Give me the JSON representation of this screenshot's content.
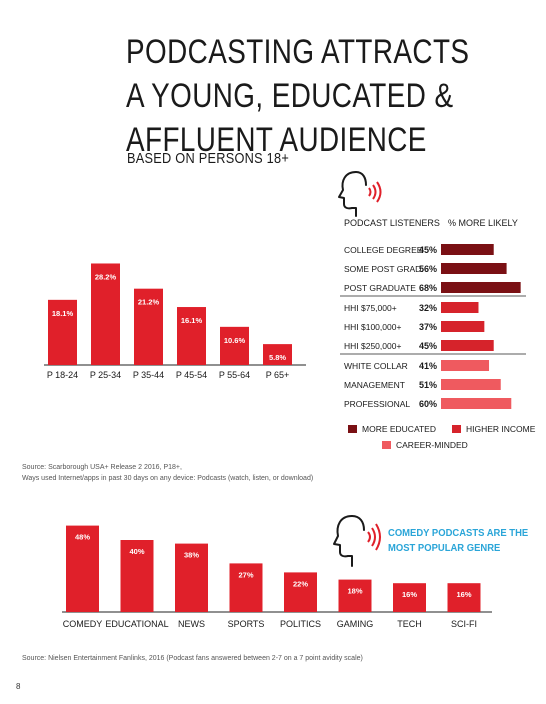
{
  "page": {
    "headline_lines": [
      "PODCASTING ATTRACTS",
      "A YOUNG, EDUCATED &",
      "AFFLUENT AUDIENCE"
    ],
    "subtitle": "BASED ON PERSONS 18+",
    "page_number": "8",
    "source_1": [
      "Source: Scarborough USA+ Release 2 2016, P18+,",
      "Ways used Internet/apps in past 30 days on any device: Podcasts (watch, listen, or download)"
    ],
    "source_2": "Source: Nielsen Entertainment Fanlinks, 2016 (Podcast fans answered between 2-7 on a 7 point avidity scale)",
    "callout": "COMEDY PODCASTS ARE THE MOST POPULAR GENRE",
    "icons": [
      "speaking-head-icon",
      "speaking-head-icon"
    ],
    "colors": {
      "bar_red": "#e0202a",
      "dark_red": "#7a1014",
      "mid_red": "#d6232b",
      "light_red": "#ef5a5f",
      "accent_blue": "#2aa5d8"
    }
  },
  "chart_data": [
    {
      "type": "bar",
      "categories": [
        "P 18-24",
        "P 25-34",
        "P 35-44",
        "P 45-54",
        "P 55-64",
        "P 65+"
      ],
      "values": [
        18.1,
        28.2,
        21.2,
        16.1,
        10.6,
        5.8
      ],
      "data_labels": [
        "18.1%",
        "28.2%",
        "21.2%",
        "16.1%",
        "10.6%",
        "5.8%"
      ],
      "ylim": [
        0,
        30
      ],
      "grid": false,
      "color": "#e0202a"
    },
    {
      "type": "bar",
      "orientation": "horizontal",
      "header_left": "PODCAST LISTENERS",
      "header_right": "% MORE LIKELY",
      "groups": [
        {
          "name": "MORE EDUCATED",
          "color": "#7a1014",
          "categories": [
            "COLLEGE DEGREE",
            "SOME POST GRAD.",
            "POST GRADUATE"
          ],
          "values": [
            45,
            56,
            68
          ],
          "data_labels": [
            "45%",
            "56%",
            "68%"
          ]
        },
        {
          "name": "HIGHER INCOME",
          "color": "#d6232b",
          "categories": [
            "HHI $75,000+",
            "HHI $100,000+",
            "HHI $250,000+"
          ],
          "values": [
            32,
            37,
            45
          ],
          "data_labels": [
            "32%",
            "37%",
            "45%"
          ]
        },
        {
          "name": "CAREER-MINDED",
          "color": "#ef5a5f",
          "categories": [
            "WHITE COLLAR",
            "MANAGEMENT",
            "PROFESSIONAL"
          ],
          "values": [
            41,
            51,
            60
          ],
          "data_labels": [
            "41%",
            "51%",
            "60%"
          ]
        }
      ],
      "legend": [
        "MORE EDUCATED",
        "HIGHER INCOME",
        "CAREER-MINDED"
      ],
      "xlim": [
        0,
        70
      ]
    },
    {
      "type": "bar",
      "categories": [
        "COMEDY",
        "EDUCATIONAL",
        "NEWS",
        "SPORTS",
        "POLITICS",
        "GAMING",
        "TECH",
        "SCI-FI"
      ],
      "values": [
        48,
        40,
        38,
        27,
        22,
        18,
        16,
        16
      ],
      "data_labels": [
        "48%",
        "40%",
        "38%",
        "27%",
        "22%",
        "18%",
        "16%",
        "16%"
      ],
      "ylim": [
        0,
        50
      ],
      "grid": false,
      "color": "#e0202a"
    }
  ]
}
